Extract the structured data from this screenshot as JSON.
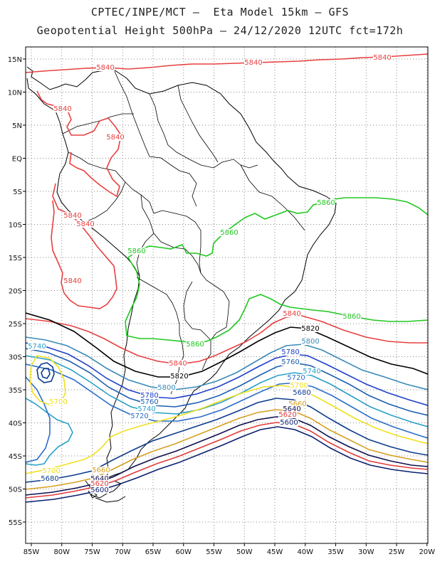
{
  "header": {
    "line1": "CPTEC/INPE/MCT –  Eta Model 15km – GFS",
    "line2": "Geopotential Height 500hPa – 24/12/2020 12UTC fct=172h"
  },
  "axes": {
    "lat_labels": [
      "15N",
      "10N",
      "5N",
      "EQ",
      "5S",
      "10S",
      "15S",
      "20S",
      "25S",
      "30S",
      "35S",
      "40S",
      "45S",
      "50S",
      "55S"
    ],
    "lon_labels": [
      "85W",
      "80W",
      "75W",
      "70W",
      "65W",
      "60W",
      "55W",
      "50W",
      "45W",
      "40W",
      "35W",
      "30W",
      "25W",
      "20W"
    ]
  },
  "legend_colors": {
    "5600": "#0a1f6e",
    "5620": "#e03c3c",
    "5640": "#101050",
    "5660": "#d7a020",
    "5680": "#0c3c8c",
    "5700": "#f0e020",
    "5720": "#2c6ec8",
    "5740": "#2aa0c8",
    "5760": "#1f5fb0",
    "5780": "#2040c8",
    "5800": "#3a8ab8",
    "5820": "#000000",
    "5840": "#e84040",
    "5860": "#20c820"
  },
  "contour_labels": [
    {
      "text": "5840",
      "color": "#e84040"
    },
    {
      "text": "5840",
      "color": "#e84040"
    },
    {
      "text": "5840",
      "color": "#e84040"
    },
    {
      "text": "5840",
      "color": "#e84040"
    },
    {
      "text": "5840",
      "color": "#e84040"
    },
    {
      "text": "5840",
      "color": "#e84040"
    },
    {
      "text": "5840",
      "color": "#e84040"
    },
    {
      "text": "5840",
      "color": "#e84040"
    },
    {
      "text": "5840",
      "color": "#e84040"
    },
    {
      "text": "5840",
      "color": "#e84040"
    },
    {
      "text": "5860",
      "color": "#20c820"
    },
    {
      "text": "5860",
      "color": "#20c820"
    },
    {
      "text": "5860",
      "color": "#20c820"
    },
    {
      "text": "5860",
      "color": "#20c820"
    },
    {
      "text": "5860",
      "color": "#20c820"
    },
    {
      "text": "5820",
      "color": "#000000"
    },
    {
      "text": "5820",
      "color": "#000000"
    },
    {
      "text": "5800",
      "color": "#3a8ab8"
    },
    {
      "text": "5780",
      "color": "#2040c8"
    },
    {
      "text": "5760",
      "color": "#1f5fb0"
    },
    {
      "text": "5740",
      "color": "#2aa0c8"
    },
    {
      "text": "5720",
      "color": "#2c6ec8"
    },
    {
      "text": "5700",
      "color": "#f0e020"
    },
    {
      "text": "5680",
      "color": "#0c3c8c"
    },
    {
      "text": "5660",
      "color": "#d7a020"
    },
    {
      "text": "5640",
      "color": "#101050"
    },
    {
      "text": "5620",
      "color": "#e03c3c"
    },
    {
      "text": "5600",
      "color": "#0a1f6e"
    },
    {
      "text": "5800",
      "color": "#3a8ab8"
    },
    {
      "text": "5780",
      "color": "#2040c8"
    },
    {
      "text": "5760",
      "color": "#1f5fb0"
    },
    {
      "text": "5740",
      "color": "#2aa0c8"
    },
    {
      "text": "5720",
      "color": "#2c6ec8"
    },
    {
      "text": "5740",
      "color": "#2aa0c8"
    },
    {
      "text": "5700",
      "color": "#f0e020"
    },
    {
      "text": "5700",
      "color": "#f0e020"
    },
    {
      "text": "5680",
      "color": "#0c3c8c"
    },
    {
      "text": "5660",
      "color": "#d7a020"
    },
    {
      "text": "5640",
      "color": "#101050"
    },
    {
      "text": "5620",
      "color": "#e03c3c"
    },
    {
      "text": "5600",
      "color": "#0a1f6e"
    }
  ]
}
